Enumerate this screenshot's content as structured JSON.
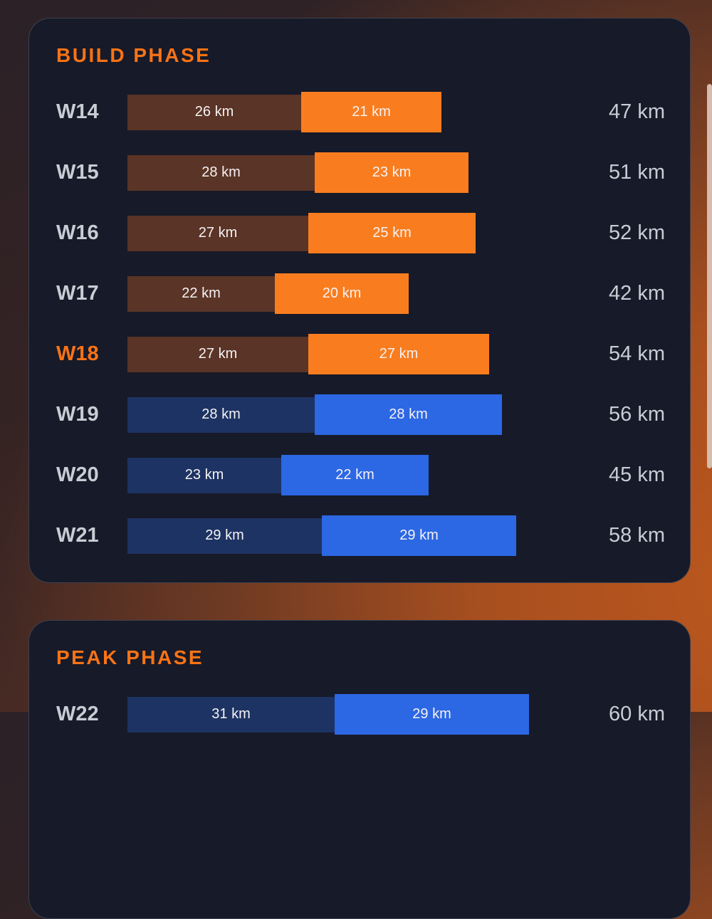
{
  "theme": {
    "background_top_left": "#2B2127",
    "background_bottom_right": "#B2521E",
    "card_bg": "#171A28",
    "accent_orange": "#F97316",
    "label_gray": "#C9CCD4",
    "bar_text": "#F5F2F4",
    "bar_brown": "#5A3426",
    "bar_orange": "#F97D1F",
    "bar_navy": "#1D3363",
    "bar_blue": "#2C67E4",
    "scrollbar_color": "#D8BBAF"
  },
  "chart_data": [
    {
      "type": "bar",
      "orientation": "horizontal",
      "stacked": true,
      "title": "BUILD PHASE",
      "unit": "km",
      "categories": [
        "W14",
        "W15",
        "W16",
        "W17",
        "W18",
        "W19",
        "W20",
        "W21"
      ],
      "series": [
        {
          "name": "segment-1",
          "values": [
            26,
            28,
            27,
            22,
            27,
            28,
            23,
            29
          ]
        },
        {
          "name": "segment-2",
          "values": [
            21,
            23,
            25,
            20,
            27,
            28,
            22,
            29
          ]
        }
      ],
      "totals": [
        47,
        51,
        52,
        42,
        54,
        56,
        45,
        58
      ],
      "highlighted_category": "W18",
      "row_palettes": [
        "orange",
        "orange",
        "orange",
        "orange",
        "orange",
        "blue",
        "blue",
        "blue"
      ],
      "legend": "none",
      "grid": false
    },
    {
      "type": "bar",
      "orientation": "horizontal",
      "stacked": true,
      "title": "PEAK PHASE",
      "unit": "km",
      "categories": [
        "W22"
      ],
      "series": [
        {
          "name": "segment-1",
          "values": [
            31
          ]
        },
        {
          "name": "segment-2",
          "values": [
            29
          ]
        }
      ],
      "totals": [
        60
      ],
      "row_palettes": [
        "blue"
      ],
      "legend": "none",
      "grid": false
    }
  ],
  "sections": [
    {
      "title": "BUILD PHASE",
      "rows": [
        {
          "label": "W14",
          "palette": "orange",
          "highlight": false,
          "seg1_km": 26,
          "seg1_text": "26 km",
          "seg2_km": 21,
          "seg2_text": "21 km",
          "total_text": "47 km"
        },
        {
          "label": "W15",
          "palette": "orange",
          "highlight": false,
          "seg1_km": 28,
          "seg1_text": "28 km",
          "seg2_km": 23,
          "seg2_text": "23 km",
          "total_text": "51 km"
        },
        {
          "label": "W16",
          "palette": "orange",
          "highlight": false,
          "seg1_km": 27,
          "seg1_text": "27 km",
          "seg2_km": 25,
          "seg2_text": "25 km",
          "total_text": "52 km"
        },
        {
          "label": "W17",
          "palette": "orange",
          "highlight": false,
          "seg1_km": 22,
          "seg1_text": "22 km",
          "seg2_km": 20,
          "seg2_text": "20 km",
          "total_text": "42 km"
        },
        {
          "label": "W18",
          "palette": "orange",
          "highlight": true,
          "seg1_km": 27,
          "seg1_text": "27 km",
          "seg2_km": 27,
          "seg2_text": "27 km",
          "total_text": "54 km"
        },
        {
          "label": "W19",
          "palette": "blue",
          "highlight": false,
          "seg1_km": 28,
          "seg1_text": "28 km",
          "seg2_km": 28,
          "seg2_text": "28 km",
          "total_text": "56 km"
        },
        {
          "label": "W20",
          "palette": "blue",
          "highlight": false,
          "seg1_km": 23,
          "seg1_text": "23 km",
          "seg2_km": 22,
          "seg2_text": "22 km",
          "total_text": "45 km"
        },
        {
          "label": "W21",
          "palette": "blue",
          "highlight": false,
          "seg1_km": 29,
          "seg1_text": "29 km",
          "seg2_km": 29,
          "seg2_text": "29 km",
          "total_text": "58 km"
        }
      ]
    },
    {
      "title": "PEAK PHASE",
      "rows": [
        {
          "label": "W22",
          "palette": "blue",
          "highlight": false,
          "seg1_km": 31,
          "seg1_text": "31 km",
          "seg2_km": 29,
          "seg2_text": "29 km",
          "total_text": "60 km"
        }
      ]
    }
  ]
}
